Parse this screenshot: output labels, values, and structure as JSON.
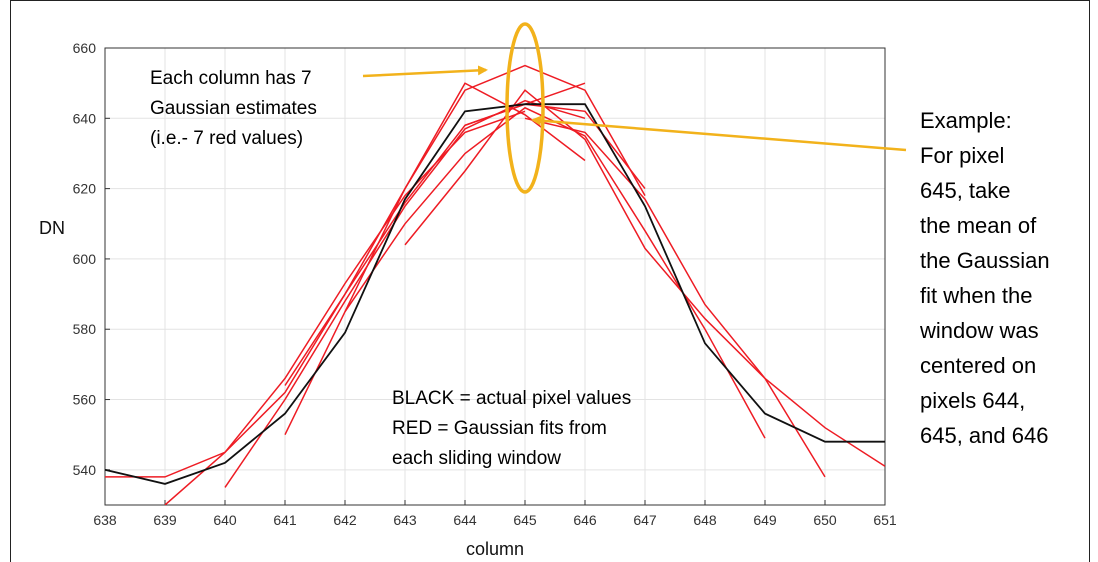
{
  "chart_data": {
    "type": "line",
    "xlabel": "column",
    "ylabel": "DN",
    "xlim": [
      638,
      651
    ],
    "ylim": [
      530,
      660
    ],
    "x_ticks": [
      638,
      639,
      640,
      641,
      642,
      643,
      644,
      645,
      646,
      647,
      648,
      649,
      650,
      651
    ],
    "y_ticks": [
      540,
      560,
      580,
      600,
      620,
      640,
      660
    ],
    "grid": true,
    "series": [
      {
        "color": "#111111",
        "points": [
          [
            638,
            540
          ],
          [
            639,
            536
          ],
          [
            640,
            542
          ],
          [
            641,
            556
          ],
          [
            642,
            579
          ],
          [
            643,
            617
          ],
          [
            644,
            642
          ],
          [
            645,
            644
          ],
          [
            646,
            644
          ],
          [
            647,
            615
          ],
          [
            648,
            576
          ],
          [
            649,
            556
          ],
          [
            650,
            548
          ],
          [
            651,
            548
          ]
        ]
      }
    ],
    "fits": [
      {
        "color": "#ee1c24",
        "points": [
          [
            638,
            538
          ],
          [
            639,
            538
          ],
          [
            640,
            545
          ],
          [
            641,
            562
          ],
          [
            642,
            590
          ],
          [
            643,
            616
          ],
          [
            644,
            638
          ],
          [
            645,
            644
          ],
          [
            646,
            642
          ],
          [
            647,
            620
          ]
        ]
      },
      {
        "color": "#ee1c24",
        "points": [
          [
            639,
            530
          ],
          [
            640,
            545
          ],
          [
            641,
            566
          ],
          [
            642,
            593
          ],
          [
            643,
            618
          ],
          [
            644,
            636
          ],
          [
            645,
            642
          ]
        ]
      },
      {
        "color": "#ee1c24",
        "points": [
          [
            640,
            535
          ],
          [
            641,
            560
          ],
          [
            642,
            588
          ],
          [
            643,
            615
          ],
          [
            644,
            637
          ],
          [
            645,
            645
          ],
          [
            646,
            640
          ]
        ]
      },
      {
        "color": "#ee1c24",
        "points": [
          [
            641,
            550
          ],
          [
            642,
            585
          ],
          [
            643,
            620
          ],
          [
            644,
            648
          ],
          [
            645,
            655
          ],
          [
            646,
            648
          ],
          [
            647,
            618
          ]
        ]
      },
      {
        "color": "#ee1c24",
        "points": [
          [
            641,
            564
          ],
          [
            642,
            590
          ],
          [
            643,
            620
          ],
          [
            644,
            650
          ],
          [
            645,
            641
          ],
          [
            646,
            628
          ]
        ]
      },
      {
        "color": "#ee1c24",
        "points": [
          [
            642,
            585
          ],
          [
            643,
            610
          ],
          [
            644,
            630
          ],
          [
            645,
            643
          ],
          [
            646,
            635
          ],
          [
            647,
            608
          ],
          [
            648,
            580
          ],
          [
            649,
            549
          ]
        ]
      },
      {
        "color": "#ee1c24",
        "points": [
          [
            643,
            604
          ],
          [
            644,
            625
          ],
          [
            645,
            648
          ],
          [
            646,
            634
          ],
          [
            647,
            603
          ],
          [
            648,
            583
          ],
          [
            649,
            566
          ],
          [
            650,
            552
          ],
          [
            651,
            541
          ]
        ]
      },
      {
        "color": "#ee1c24",
        "points": [
          [
            644,
            638
          ],
          [
            645,
            644
          ],
          [
            646,
            650
          ]
        ]
      },
      {
        "color": "#ee1c24",
        "points": [
          [
            645,
            640
          ],
          [
            646,
            636
          ],
          [
            647,
            617
          ],
          [
            648,
            587
          ],
          [
            649,
            566
          ],
          [
            650,
            538
          ]
        ]
      }
    ],
    "annotations": {
      "top_left": [
        "Each column has 7",
        "Gaussian estimates",
        "(i.e.- 7 red values)"
      ],
      "center": [
        "BLACK = actual pixel values",
        "RED = Gaussian fits from",
        "each sliding window"
      ],
      "right": [
        "Example:",
        "For pixel",
        "645, take",
        "the mean of",
        "the Gaussian",
        "fit when the",
        "window was",
        "centered on",
        "pixels 644,",
        "645, and 646"
      ]
    },
    "highlight": {
      "ellipse_color": "#f2b21b",
      "arrow_color": "#f2b21b",
      "center_x": 645,
      "center_y": 639
    }
  }
}
